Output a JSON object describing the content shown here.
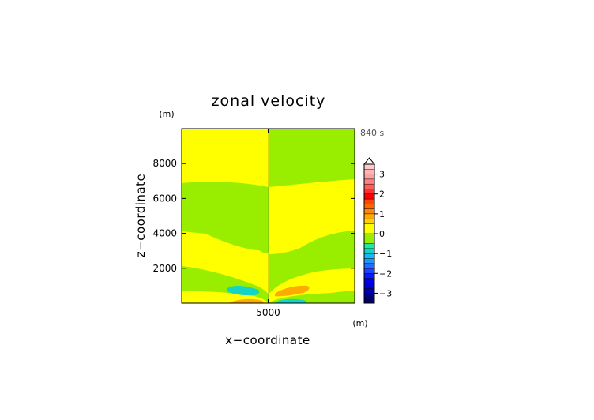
{
  "chart_data": {
    "type": "heatmap",
    "title": "zonal velocity",
    "xlabel": "x−coordinate",
    "ylabel": "z−coordinate",
    "x_unit": "(m)",
    "y_unit": "(m)",
    "time_label": "840 s",
    "xlim": [
      0,
      10000
    ],
    "ylim": [
      0,
      10000
    ],
    "x_ticks": [
      {
        "value": 5000,
        "label": "5000"
      }
    ],
    "y_ticks": [
      {
        "value": 2000,
        "label": "2000"
      },
      {
        "value": 4000,
        "label": "4000"
      },
      {
        "value": 6000,
        "label": "6000"
      },
      {
        "value": 8000,
        "label": "8000"
      }
    ],
    "colorbar": {
      "levels": [
        -3.5,
        -3.25,
        -3,
        -2.75,
        -2.5,
        -2.25,
        -2,
        -1.75,
        -1.5,
        -1.25,
        -1,
        -0.75,
        -0.5,
        0,
        0.5,
        0.75,
        1,
        1.25,
        1.5,
        1.75,
        2,
        2.25,
        2.5,
        2.75,
        3,
        3.25,
        3.5
      ],
      "colors": [
        "#000066",
        "#00008a",
        "#0000b0",
        "#0000d4",
        "#0000f0",
        "#0a1aff",
        "#1a44ff",
        "#1f6fff",
        "#1f96ff",
        "#12bcf0",
        "#14d4c8",
        "#1ee8a8",
        "#99ee00",
        "#ffff00",
        "#ffd200",
        "#ffaa00",
        "#ff8800",
        "#ff6600",
        "#ff4400",
        "#ff0000",
        "#ff3030",
        "#ff5c5c",
        "#ff8080",
        "#ffa0a0",
        "#ffb6b6",
        "#ffcaca"
      ],
      "tick_labels": [
        {
          "value": -3,
          "label": "−3"
        },
        {
          "value": -2,
          "label": "−2"
        },
        {
          "value": -1,
          "label": "−1"
        },
        {
          "value": 0,
          "label": "0"
        },
        {
          "value": 1,
          "label": "1"
        },
        {
          "value": 2,
          "label": "2"
        },
        {
          "value": 3,
          "label": "3"
        }
      ],
      "extend_max": true
    },
    "field_colors": {
      "positive_small": "#ffff00",
      "negative_small": "#99ee00",
      "positive_medium": "#ffaa00",
      "negative_medium": "#14d4c8"
    }
  }
}
